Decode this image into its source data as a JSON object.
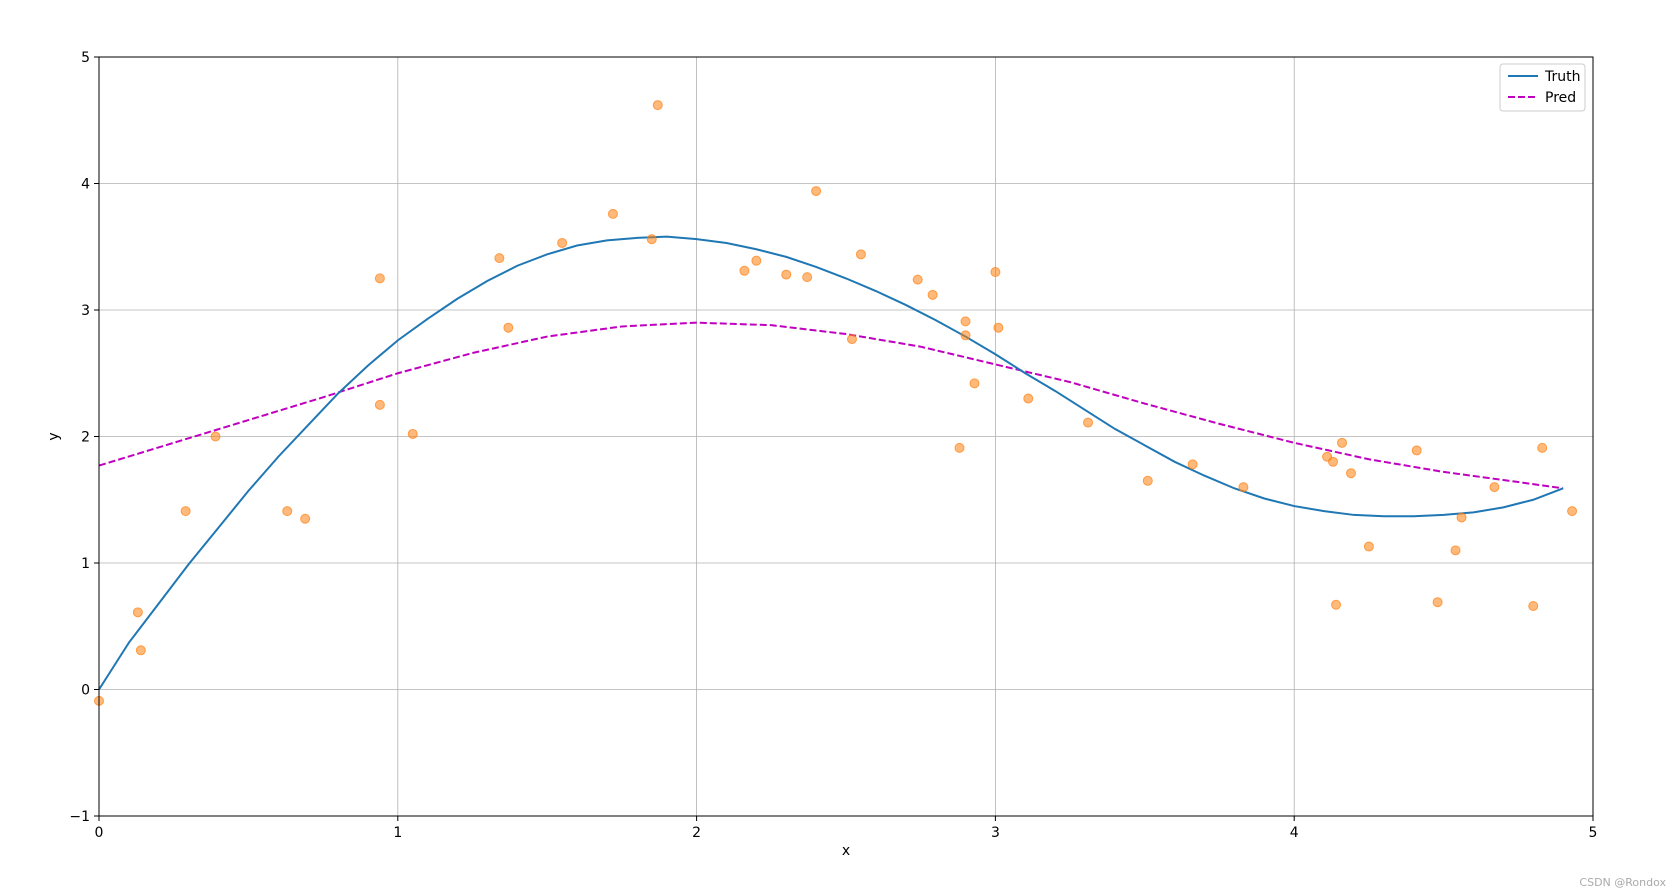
{
  "chart_data": {
    "type": "line",
    "title": "",
    "xlabel": "x",
    "ylabel": "y",
    "xlim": [
      0,
      5
    ],
    "ylim": [
      -1,
      5
    ],
    "xticks": [
      "0",
      "1",
      "2",
      "3",
      "4",
      "5"
    ],
    "yticks": [
      "−1",
      "0",
      "1",
      "2",
      "3",
      "4",
      "5"
    ],
    "grid": true,
    "legend_position": "top-right",
    "series": [
      {
        "name": "Truth",
        "style": "solid",
        "color": "#1f77b4",
        "x": [
          0,
          0.1,
          0.2,
          0.3,
          0.4,
          0.5,
          0.6,
          0.7,
          0.8,
          0.9,
          1.0,
          1.1,
          1.2,
          1.3,
          1.4,
          1.5,
          1.6,
          1.7,
          1.8,
          1.9,
          2.0,
          2.1,
          2.2,
          2.3,
          2.4,
          2.5,
          2.6,
          2.7,
          2.8,
          2.9,
          3.0,
          3.1,
          3.2,
          3.3,
          3.4,
          3.5,
          3.6,
          3.7,
          3.8,
          3.9,
          4.0,
          4.1,
          4.2,
          4.3,
          4.4,
          4.5,
          4.6,
          4.7,
          4.8,
          4.9
        ],
        "y": [
          0.0,
          0.37,
          0.68,
          0.99,
          1.28,
          1.57,
          1.84,
          2.09,
          2.34,
          2.56,
          2.76,
          2.93,
          3.09,
          3.23,
          3.35,
          3.44,
          3.51,
          3.55,
          3.57,
          3.58,
          3.56,
          3.53,
          3.48,
          3.42,
          3.34,
          3.25,
          3.15,
          3.04,
          2.92,
          2.79,
          2.65,
          2.5,
          2.36,
          2.21,
          2.06,
          1.93,
          1.8,
          1.69,
          1.59,
          1.51,
          1.45,
          1.41,
          1.38,
          1.37,
          1.37,
          1.38,
          1.4,
          1.44,
          1.5,
          1.59
        ]
      },
      {
        "name": "Pred",
        "style": "dashed",
        "color": "#bf00bf",
        "x": [
          0,
          0.25,
          0.5,
          0.75,
          1.0,
          1.25,
          1.5,
          1.75,
          2.0,
          2.25,
          2.5,
          2.75,
          3.0,
          3.25,
          3.5,
          3.75,
          4.0,
          4.25,
          4.5,
          4.75,
          4.9
        ],
        "y": [
          1.77,
          1.95,
          2.13,
          2.31,
          2.5,
          2.66,
          2.79,
          2.87,
          2.9,
          2.88,
          2.81,
          2.71,
          2.57,
          2.43,
          2.26,
          2.1,
          1.95,
          1.82,
          1.72,
          1.64,
          1.59
        ]
      }
    ],
    "scatter": {
      "color": "#ff7f0e",
      "points": [
        [
          0.0,
          -0.09
        ],
        [
          0.13,
          0.61
        ],
        [
          0.14,
          0.31
        ],
        [
          0.29,
          1.41
        ],
        [
          0.39,
          2.0
        ],
        [
          0.63,
          1.41
        ],
        [
          0.69,
          1.35
        ],
        [
          0.94,
          3.25
        ],
        [
          0.94,
          2.25
        ],
        [
          1.05,
          2.02
        ],
        [
          1.34,
          3.41
        ],
        [
          1.37,
          2.86
        ],
        [
          1.55,
          3.53
        ],
        [
          1.72,
          3.76
        ],
        [
          1.85,
          3.56
        ],
        [
          1.87,
          4.62
        ],
        [
          2.16,
          3.31
        ],
        [
          2.2,
          3.39
        ],
        [
          2.3,
          3.28
        ],
        [
          2.37,
          3.26
        ],
        [
          2.4,
          3.94
        ],
        [
          2.52,
          2.77
        ],
        [
          2.55,
          3.44
        ],
        [
          2.74,
          3.24
        ],
        [
          2.79,
          3.12
        ],
        [
          2.88,
          1.91
        ],
        [
          2.9,
          2.91
        ],
        [
          2.9,
          2.8
        ],
        [
          2.93,
          2.42
        ],
        [
          3.0,
          3.3
        ],
        [
          3.01,
          2.86
        ],
        [
          3.11,
          2.3
        ],
        [
          3.31,
          2.11
        ],
        [
          3.51,
          1.65
        ],
        [
          3.66,
          1.78
        ],
        [
          3.83,
          1.6
        ],
        [
          4.11,
          1.84
        ],
        [
          4.13,
          1.8
        ],
        [
          4.14,
          0.67
        ],
        [
          4.16,
          1.95
        ],
        [
          4.19,
          1.71
        ],
        [
          4.25,
          1.13
        ],
        [
          4.41,
          1.89
        ],
        [
          4.48,
          0.69
        ],
        [
          4.54,
          1.1
        ],
        [
          4.56,
          1.36
        ],
        [
          4.67,
          1.6
        ],
        [
          4.8,
          0.66
        ],
        [
          4.83,
          1.91
        ],
        [
          4.93,
          1.41
        ]
      ]
    }
  },
  "watermark": "CSDN @Rondox"
}
